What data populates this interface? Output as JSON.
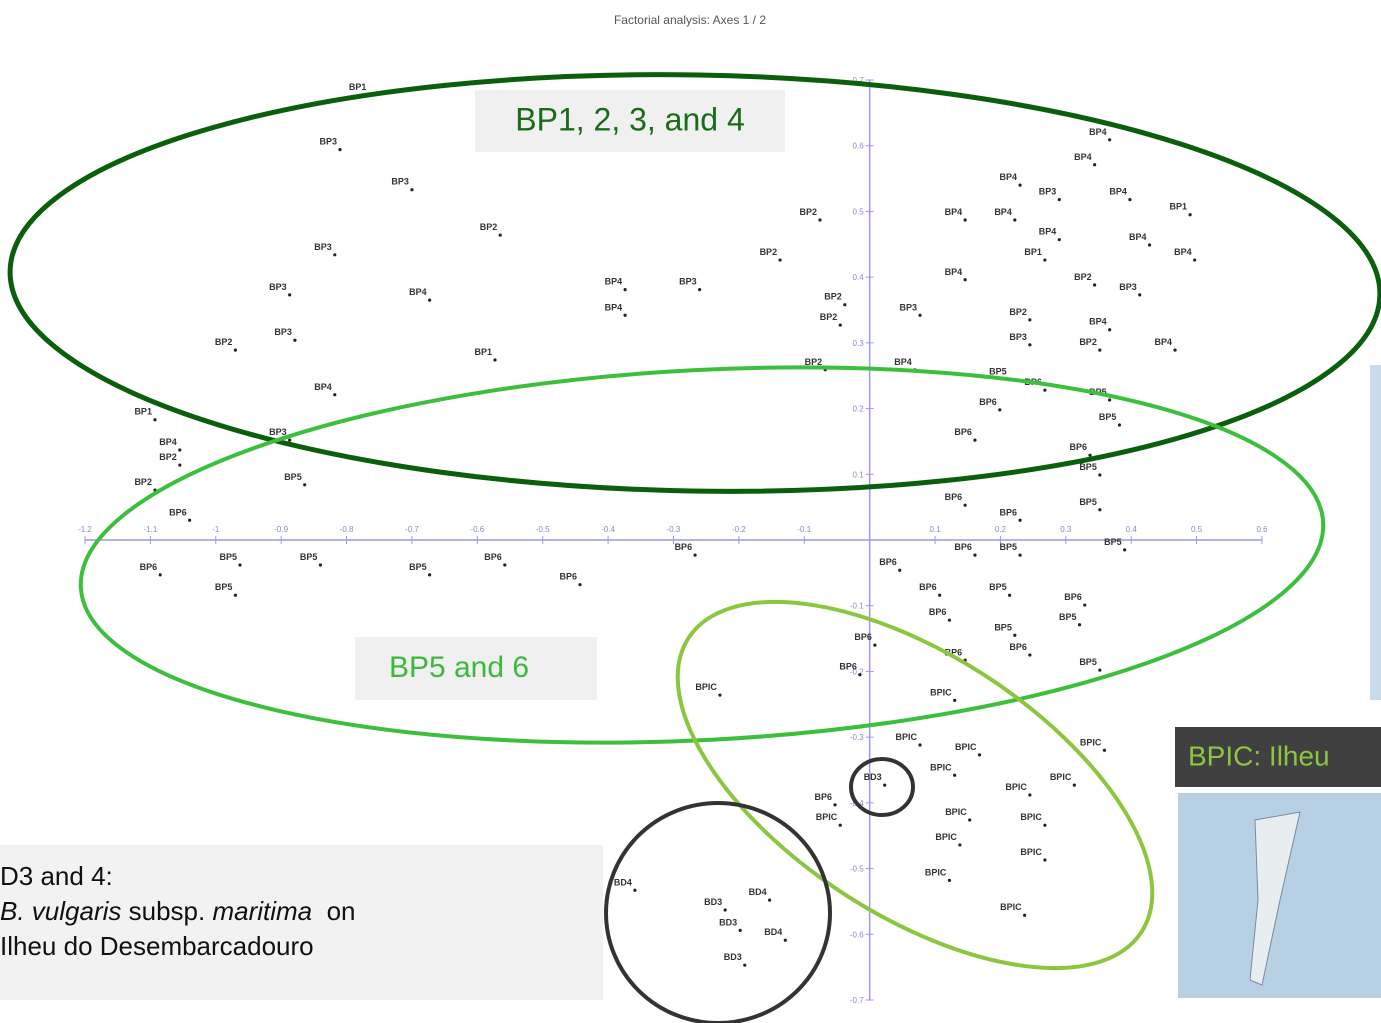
{
  "chart_data": {
    "type": "scatter",
    "title": "Factorial analysis: Axes 1 / 2",
    "color": "#222222",
    "axis_color": "#9999ee",
    "xlim": [
      -1.2,
      0.6
    ],
    "ylim": [
      -0.7,
      0.7
    ],
    "xticks": [
      -1.2,
      -1.1,
      -1,
      -0.9,
      -0.8,
      -0.7,
      -0.6,
      -0.5,
      -0.4,
      -0.3,
      -0.2,
      -0.1,
      0.1,
      0.2,
      0.3,
      0.4,
      0.5,
      0.6
    ],
    "yticks": [
      -0.7,
      -0.6,
      -0.5,
      -0.4,
      -0.3,
      -0.2,
      -0.1,
      0.1,
      0.2,
      0.3,
      0.4,
      0.5,
      0.6,
      0.7
    ],
    "point_labels": [
      "BP1",
      "BP3",
      "BP3",
      "BP2",
      "BP2",
      "BP3",
      "BP3",
      "BP4",
      "BP4",
      "BP4",
      "BP3",
      "BP2",
      "BP3",
      "BP2",
      "BP1",
      "BP4",
      "BP1",
      "BP4",
      "BP2",
      "BP3",
      "BP5",
      "BP2",
      "BP6",
      "BP6",
      "BP5",
      "BP5",
      "BP5",
      "BP5",
      "BP6",
      "BP6",
      "BP6",
      "BP4",
      "BP4",
      "BP4",
      "BP3",
      "BP4",
      "BP4",
      "BP4",
      "BP1",
      "BP4",
      "BP4",
      "BP1",
      "BP4",
      "BP4",
      "BP2",
      "BP3",
      "BP2",
      "BP2",
      "BP3",
      "BP2",
      "BP4",
      "BP3",
      "BP2",
      "BP4",
      "BP2",
      "BP4",
      "BP5",
      "BP6",
      "BP5",
      "BP6",
      "BP5",
      "BP6",
      "BP6",
      "BP5",
      "BP6",
      "BP6",
      "BP5",
      "BP5",
      "BP6",
      "BP5",
      "BP6",
      "BP6",
      "BP5",
      "BP6",
      "BP6",
      "BP5",
      "BP5",
      "BP6",
      "BP6",
      "BP6",
      "BP5",
      "BP6",
      "BPIC",
      "BPIC",
      "BPIC",
      "BPIC",
      "BPIC",
      "BPIC",
      "BPIC",
      "BPIC",
      "BD3",
      "BPIC",
      "BPIC",
      "BPIC",
      "BPIC",
      "BP6",
      "BPIC",
      "BPIC",
      "BPIC",
      "BD4",
      "BD3",
      "BD4",
      "BD3",
      "BD4",
      "BD3"
    ],
    "x": [
      -0.765,
      -0.81,
      -0.7,
      -0.565,
      -0.076,
      -0.818,
      -0.887,
      -0.673,
      -0.374,
      -0.374,
      -0.26,
      -0.137,
      -0.879,
      -0.97,
      -0.573,
      -0.818,
      -1.093,
      -1.055,
      -1.055,
      -0.887,
      -0.864,
      -1.093,
      -1.04,
      -1.085,
      -0.963,
      -0.84,
      -0.97,
      -0.673,
      -0.558,
      -0.443,
      -0.267,
      0.367,
      0.344,
      0.23,
      0.29,
      0.398,
      0.146,
      0.222,
      0.49,
      0.29,
      0.428,
      0.268,
      0.497,
      0.146,
      0.344,
      0.413,
      -0.038,
      -0.045,
      0.077,
      0.245,
      0.367,
      0.245,
      0.352,
      0.467,
      -0.068,
      0.069,
      0.214,
      0.268,
      0.367,
      0.199,
      0.382,
      0.161,
      0.337,
      0.352,
      0.146,
      0.23,
      0.352,
      0.39,
      0.161,
      0.23,
      0.046,
      0.107,
      0.214,
      0.329,
      0.122,
      0.321,
      0.222,
      0.008,
      0.146,
      0.245,
      0.352,
      -0.015,
      -0.229,
      0.13,
      0.077,
      0.168,
      0.359,
      0.13,
      0.245,
      0.313,
      0.023,
      0.153,
      0.268,
      0.138,
      0.268,
      -0.053,
      -0.045,
      0.122,
      0.237,
      -0.359,
      -0.221,
      -0.153,
      -0.198,
      -0.129,
      -0.191
    ],
    "values": [
      0.677,
      0.594,
      0.533,
      0.464,
      0.487,
      0.434,
      0.373,
      0.365,
      0.381,
      0.342,
      0.381,
      0.426,
      0.304,
      0.289,
      0.274,
      0.221,
      0.183,
      0.137,
      0.114,
      0.152,
      0.084,
      0.076,
      0.03,
      -0.053,
      -0.038,
      -0.038,
      -0.084,
      -0.053,
      -0.038,
      -0.068,
      -0.023,
      0.609,
      0.571,
      0.54,
      0.518,
      0.518,
      0.487,
      0.487,
      0.495,
      0.457,
      0.449,
      0.426,
      0.426,
      0.396,
      0.388,
      0.373,
      0.358,
      0.327,
      0.342,
      0.335,
      0.32,
      0.297,
      0.289,
      0.289,
      0.259,
      0.259,
      0.244,
      0.228,
      0.213,
      0.198,
      0.175,
      0.152,
      0.129,
      0.099,
      0.053,
      0.03,
      0.046,
      -0.015,
      -0.023,
      -0.023,
      -0.046,
      -0.084,
      -0.084,
      -0.099,
      -0.122,
      -0.129,
      -0.145,
      -0.16,
      -0.183,
      -0.175,
      -0.198,
      -0.205,
      -0.236,
      -0.244,
      -0.312,
      -0.327,
      -0.32,
      -0.358,
      -0.388,
      -0.373,
      -0.373,
      -0.426,
      -0.434,
      -0.464,
      -0.487,
      -0.403,
      -0.434,
      -0.518,
      -0.571,
      -0.533,
      -0.563,
      -0.548,
      -0.594,
      -0.609,
      -0.647
    ],
    "annotations": [
      {
        "text": "BP1, 2, 3, and 4"
      },
      {
        "text": "BP5 and 6"
      },
      {
        "text": "BPIC: Ilheu"
      }
    ],
    "note_lines": [
      [
        {
          "text": "D3 and 4:",
          "italic": false
        }
      ],
      [
        {
          "text": "B. vulgaris",
          "italic": true
        },
        {
          "text": " subsp. ",
          "italic": false
        },
        {
          "text": "maritima",
          "italic": true
        },
        {
          "text": "  on",
          "italic": false
        }
      ],
      [
        {
          "text": "Ilheu do Desembarcadouro",
          "italic": false
        }
      ]
    ]
  }
}
